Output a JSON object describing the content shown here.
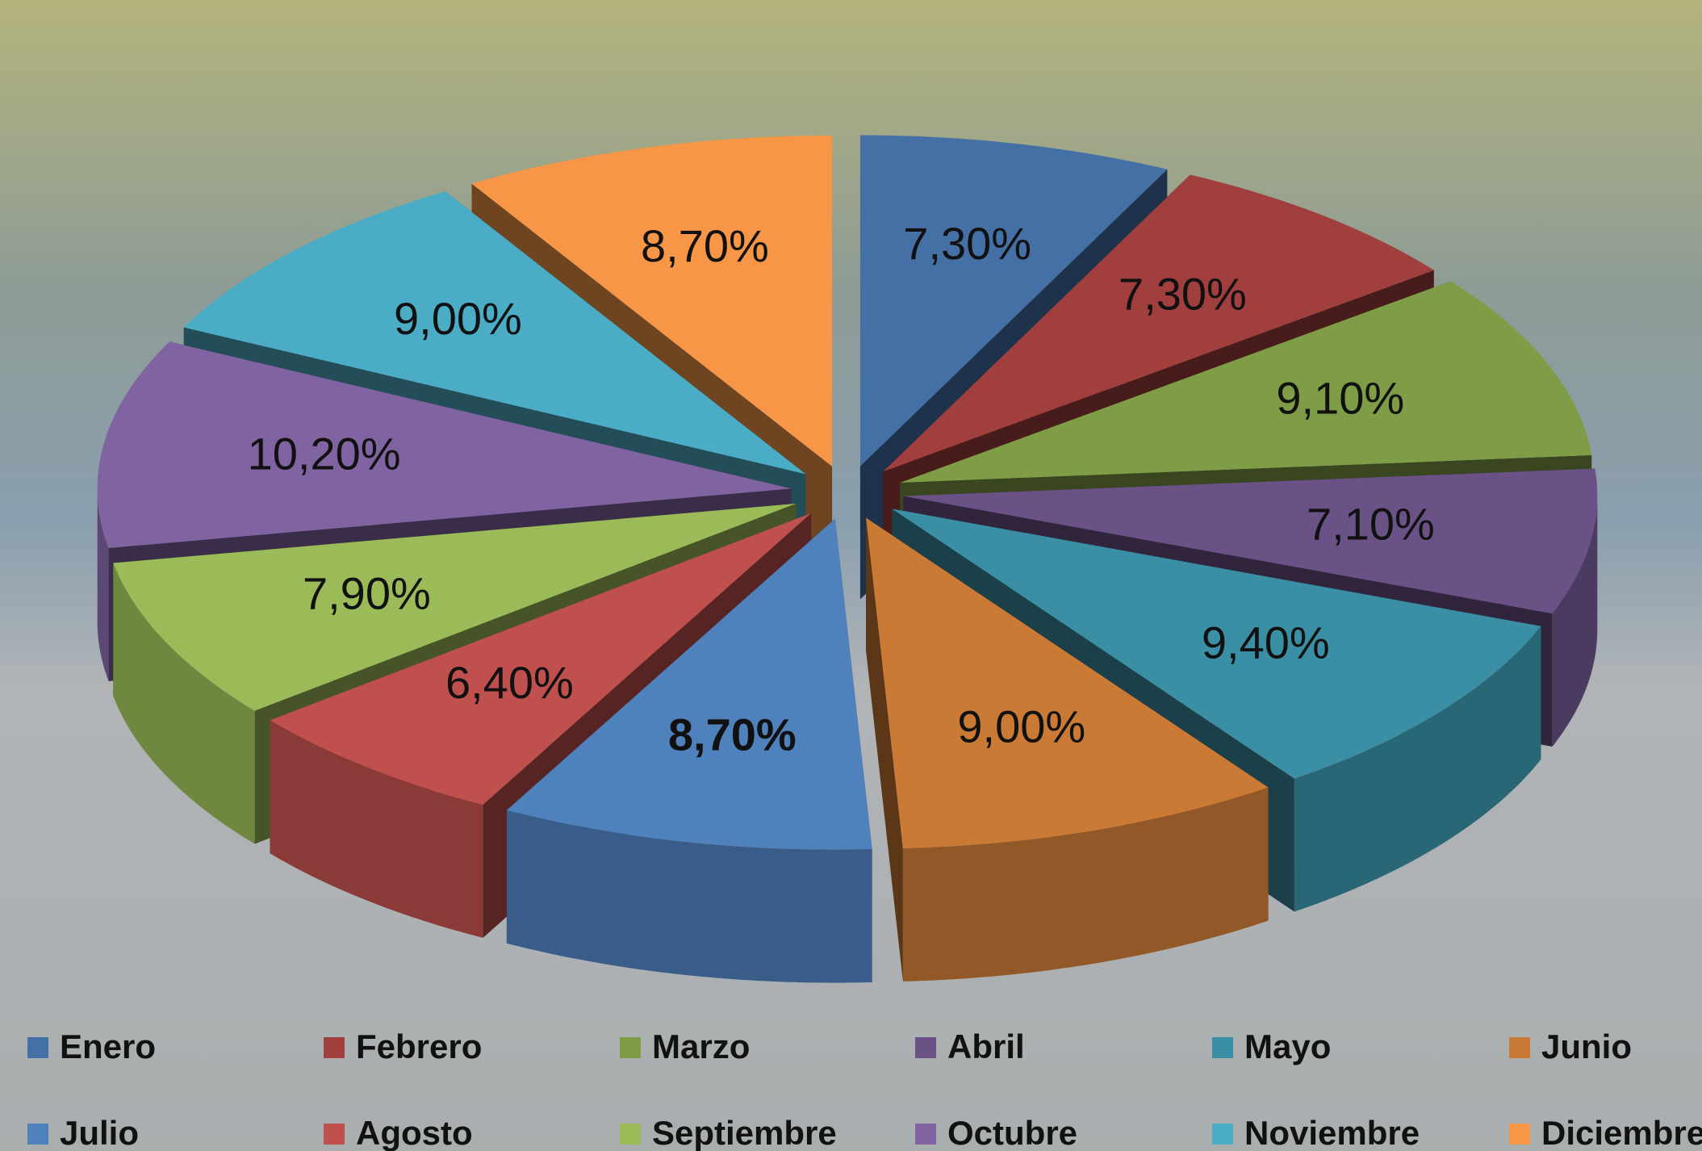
{
  "chart_data": {
    "type": "pie3d",
    "categories": [
      "Enero",
      "Febrero",
      "Marzo",
      "Abril",
      "Mayo",
      "Junio",
      "Julio",
      "Agosto",
      "Septiembre",
      "Octubre",
      "Noviembre",
      "Diciembre"
    ],
    "values": [
      7.3,
      7.3,
      9.1,
      7.1,
      9.4,
      9.0,
      8.7,
      6.4,
      7.9,
      10.2,
      9.0,
      8.7
    ],
    "value_labels": [
      "7,30%",
      "7,30%",
      "9,10%",
      "7,10%",
      "9,40%",
      "9,00%",
      "8,70%",
      "6,40%",
      "7,90%",
      "10,20%",
      "9,00%",
      "8,70%"
    ],
    "colors": [
      "#4470a6",
      "#a03f3d",
      "#7f9c46",
      "#6a5287",
      "#3b8fa4",
      "#cb7a36",
      "#4f81bd",
      "#c0504d",
      "#9bbb59",
      "#8064a2",
      "#4bacc6",
      "#f79646"
    ],
    "legend": "bottom"
  }
}
